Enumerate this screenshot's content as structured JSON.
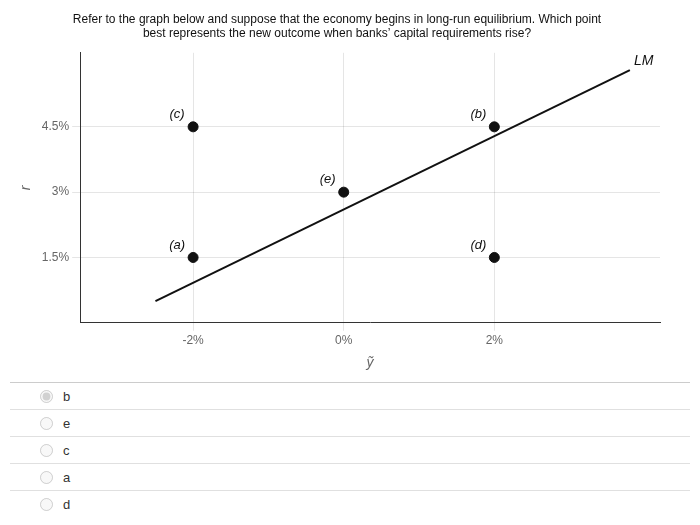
{
  "chart_data": {
    "type": "scatter",
    "title": [
      "Refer to the graph below and suppose that the economy begins in long-run equilibrium. Which point",
      "best represents the new outcome when banks’ capital requirements rise?"
    ],
    "xlabel": "ỹ",
    "ylabel": "r",
    "xlim": [
      -3.5,
      4.2
    ],
    "ylim": [
      0.0,
      6.2
    ],
    "xticks": [
      {
        "value": -2,
        "label": "-2%"
      },
      {
        "value": 0,
        "label": "0%"
      },
      {
        "value": 2,
        "label": "2%"
      }
    ],
    "yticks": [
      {
        "value": 1.5,
        "label": "1.5%"
      },
      {
        "value": 3.0,
        "label": "3%"
      },
      {
        "value": 4.5,
        "label": "4.5%"
      }
    ],
    "grid": true,
    "series": [
      {
        "name": "LM",
        "type": "line",
        "color": "#111111",
        "x": [
          -2.5,
          3.8
        ],
        "values": [
          0.5,
          5.8
        ]
      },
      {
        "type": "scatter",
        "color": "#111111",
        "x": [
          -2,
          2,
          -2,
          2,
          0
        ],
        "values": [
          1.5,
          4.5,
          4.5,
          1.5,
          3.0
        ],
        "labels": [
          "(a)",
          "(b)",
          "(c)",
          "(d)",
          "(e)"
        ]
      }
    ],
    "answer_options": [
      "b",
      "e",
      "c",
      "a",
      "d"
    ],
    "selected_answer": "b"
  }
}
